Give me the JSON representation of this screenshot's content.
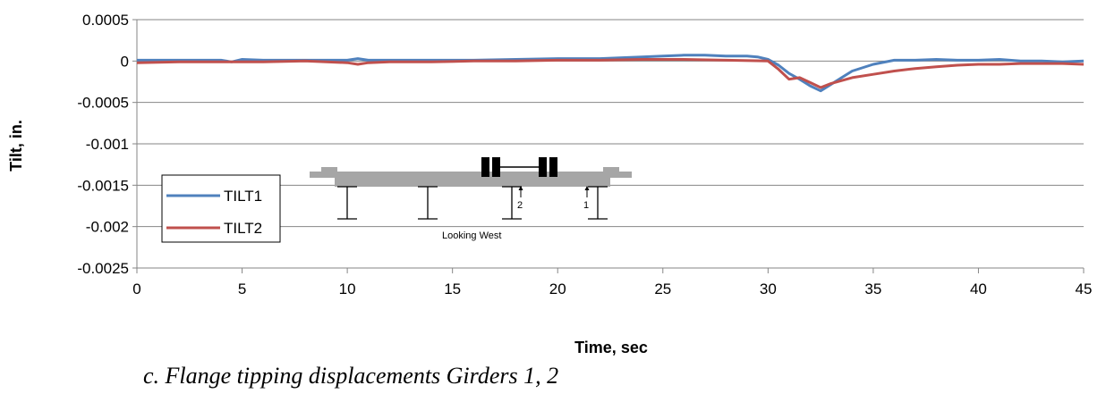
{
  "chart_data": {
    "type": "line",
    "xlabel": "Time, sec",
    "ylabel": "Tilt, in.",
    "xlim": [
      0,
      45
    ],
    "ylim": [
      -0.0025,
      0.0005
    ],
    "xticks": [
      0,
      5,
      10,
      15,
      20,
      25,
      30,
      35,
      40,
      45
    ],
    "xtick_labels": [
      "0",
      "5",
      "10",
      "15",
      "20",
      "25",
      "30",
      "35",
      "40",
      "45"
    ],
    "yticks": [
      0.0005,
      0,
      -0.0005,
      -0.001,
      -0.0015,
      -0.002,
      -0.0025
    ],
    "ytick_labels": [
      "0.0005",
      "0",
      "-0.0005",
      "-0.001",
      "-0.0015",
      "-0.002",
      "-0.0025"
    ],
    "grid": "horizontal",
    "legend_position": "bottom-left",
    "series": [
      {
        "name": "TILT1",
        "color": "#4f81bd",
        "x": [
          0,
          2,
          4,
          4.5,
          5,
          6,
          8,
          10,
          10.5,
          11,
          12,
          14,
          16,
          18,
          20,
          22,
          24,
          25,
          26,
          27,
          28,
          29,
          29.5,
          30,
          30.5,
          31,
          31.5,
          32,
          32.5,
          33,
          33.5,
          34,
          35,
          36,
          37,
          38,
          39,
          40,
          41,
          42,
          43,
          44,
          45
        ],
        "y": [
          1e-05,
          1e-05,
          1e-05,
          -1e-05,
          2e-05,
          1e-05,
          1e-05,
          1e-05,
          3e-05,
          1e-05,
          1e-05,
          1e-05,
          1e-05,
          2e-05,
          3e-05,
          3e-05,
          5e-05,
          6e-05,
          7e-05,
          7e-05,
          6e-05,
          6e-05,
          5e-05,
          2e-05,
          -5e-05,
          -0.00015,
          -0.00022,
          -0.0003,
          -0.00036,
          -0.00028,
          -0.0002,
          -0.00012,
          -4e-05,
          1e-05,
          1e-05,
          2e-05,
          1e-05,
          1e-05,
          2e-05,
          0.0,
          0.0,
          -1e-05,
          0.0
        ]
      },
      {
        "name": "TILT2",
        "color": "#c0504d",
        "x": [
          0,
          2,
          4,
          6,
          8,
          10,
          10.5,
          11,
          12,
          14,
          16,
          18,
          20,
          22,
          24,
          26,
          28,
          30,
          30.5,
          31,
          31.5,
          32,
          32.5,
          33,
          34,
          35,
          36,
          37,
          38,
          39,
          40,
          41,
          42,
          43,
          44,
          45
        ],
        "y": [
          -2e-05,
          -1e-05,
          -1e-05,
          -1e-05,
          0.0,
          -2e-05,
          -4e-05,
          -2e-05,
          -1e-05,
          -1e-05,
          0.0,
          0.0,
          1e-05,
          1e-05,
          2e-05,
          2e-05,
          1e-05,
          0.0,
          -0.0001,
          -0.00022,
          -0.0002,
          -0.00026,
          -0.00032,
          -0.00027,
          -0.0002,
          -0.00016,
          -0.00012,
          -9e-05,
          -7e-05,
          -5e-05,
          -4e-05,
          -4e-05,
          -3e-05,
          -3e-05,
          -3e-05,
          -4e-05
        ]
      }
    ],
    "inset": {
      "caption": "Looking West",
      "girder_labels": [
        "2",
        "1"
      ]
    }
  },
  "caption": "c.  Flange tipping displacements Girders 1, 2"
}
